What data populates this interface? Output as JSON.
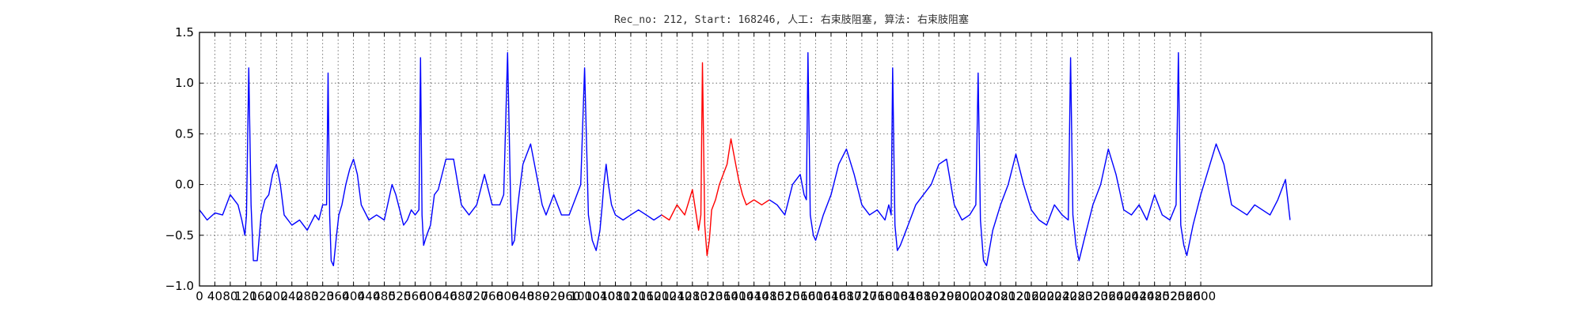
{
  "chart_data": {
    "type": "line",
    "title": "Rec_no: 212, Start: 168246, 人工: 右束肢阻塞, 算法: 右束肢阻塞",
    "xlabel": "",
    "ylabel": "",
    "xlim": [
      0,
      3200
    ],
    "ylim": [
      -1.0,
      1.5
    ],
    "grid": true,
    "y_ticks": [
      "1.5",
      "1.0",
      "0.5",
      "0.0",
      "−0.5",
      "−1.0"
    ],
    "y_tick_values": [
      1.5,
      1.0,
      0.5,
      0.0,
      -0.5,
      -1.0
    ],
    "x_ticks": [
      "0",
      "40",
      "80",
      "120",
      "160",
      "200",
      "240",
      "280",
      "320",
      "360",
      "400",
      "440",
      "480",
      "520",
      "560",
      "600",
      "640",
      "680",
      "720",
      "760",
      "800",
      "840",
      "880",
      "920",
      "960",
      "1000",
      "1040",
      "1080",
      "1120",
      "1160",
      "1200",
      "1240",
      "1280",
      "1320",
      "1360",
      "1400",
      "1440",
      "1480",
      "1520",
      "1560",
      "1600",
      "1640",
      "1680",
      "1720",
      "1760",
      "1800",
      "1840",
      "1880",
      "1920",
      "1960",
      "2000",
      "2040",
      "2080",
      "2120",
      "2160",
      "2200",
      "2240",
      "2280",
      "2320",
      "2360",
      "2400",
      "2440",
      "2480",
      "2520",
      "2560",
      "2600"
    ],
    "x_tick_values": [
      0,
      40,
      80,
      120,
      160,
      200,
      240,
      280,
      320,
      360,
      400,
      440,
      480,
      520,
      560,
      600,
      640,
      680,
      720,
      760,
      800,
      840,
      880,
      920,
      960,
      1000,
      1040,
      1080,
      1120,
      1160,
      1200,
      1240,
      1280,
      1320,
      1360,
      1400,
      1440,
      1480,
      1520,
      1560,
      1600,
      1640,
      1680,
      1720,
      1760,
      1800,
      1840,
      1880,
      1920,
      1960,
      2000,
      2040,
      2080,
      2120,
      2160,
      2200,
      2240,
      2280,
      2320,
      2360,
      2400,
      2440,
      2480,
      2520,
      2560,
      2600
    ],
    "series": [
      {
        "color": "#0000ff",
        "x": [
          0,
          20,
          40,
          60,
          80,
          100,
          110,
          118,
          122,
          128,
          134,
          140,
          150,
          160,
          170,
          180,
          190,
          200,
          210,
          220,
          240,
          260,
          280,
          300,
          310,
          320,
          330,
          334,
          338,
          342,
          348,
          356,
          362,
          370,
          380,
          390,
          400,
          410,
          420,
          440,
          460,
          480,
          500,
          510,
          520,
          530,
          540,
          550,
          560,
          570,
          574,
          578,
          582,
          590,
          600,
          610,
          620,
          640,
          660,
          680,
          700,
          720,
          740,
          760,
          780,
          790,
          800,
          808,
          812,
          818,
          824,
          830,
          840,
          860,
          880,
          890,
          900,
          920,
          940,
          960,
          970,
          990,
          1000,
          1010,
          1020,
          1030,
          1040,
          1046,
          1050,
          1056,
          1062,
          1070,
          1080,
          1100,
          1120,
          1140,
          1160,
          1180,
          1200
        ],
        "y": [
          -0.25,
          -0.35,
          -0.28,
          -0.3,
          -0.1,
          -0.2,
          -0.35,
          -0.5,
          -0.3,
          1.15,
          -0.2,
          -0.75,
          -0.75,
          -0.3,
          -0.15,
          -0.1,
          0.1,
          0.2,
          0.0,
          -0.3,
          -0.4,
          -0.35,
          -0.45,
          -0.3,
          -0.35,
          -0.2,
          -0.2,
          1.1,
          -0.3,
          -0.75,
          -0.8,
          -0.5,
          -0.3,
          -0.2,
          0.0,
          0.15,
          0.25,
          0.1,
          -0.2,
          -0.35,
          -0.3,
          -0.35,
          0.0,
          -0.1,
          -0.25,
          -0.4,
          -0.35,
          -0.25,
          -0.3,
          -0.25,
          1.25,
          -0.3,
          -0.6,
          -0.5,
          -0.4,
          -0.1,
          -0.05,
          0.25,
          0.25,
          -0.2,
          -0.3,
          -0.2,
          0.1,
          -0.2,
          -0.2,
          -0.1,
          1.3,
          -0.15,
          -0.6,
          -0.55,
          -0.3,
          -0.1,
          0.2,
          0.4,
          0.0,
          -0.2,
          -0.3,
          -0.1,
          -0.3,
          -0.3,
          -0.2,
          0.0,
          1.15,
          -0.3,
          -0.55,
          -0.65,
          -0.45,
          -0.2,
          0.0,
          0.2,
          0.0,
          -0.2,
          -0.3,
          -0.35,
          -0.3,
          -0.25,
          -0.3,
          -0.35,
          -0.3
        ]
      },
      {
        "color": "#ff0000",
        "x": [
          1200,
          1220,
          1240,
          1260,
          1280,
          1290,
          1296,
          1302,
          1306,
          1312,
          1318,
          1324,
          1330,
          1340,
          1350,
          1360,
          1370,
          1380,
          1390,
          1400,
          1410,
          1420,
          1440,
          1460,
          1480
        ],
        "y": [
          -0.3,
          -0.35,
          -0.2,
          -0.3,
          -0.05,
          -0.3,
          -0.45,
          -0.3,
          1.2,
          -0.4,
          -0.7,
          -0.55,
          -0.25,
          -0.15,
          0.0,
          0.1,
          0.2,
          0.45,
          0.25,
          0.05,
          -0.1,
          -0.2,
          -0.15,
          -0.2,
          -0.15
        ]
      },
      {
        "color": "#0000ff",
        "x": [
          1480,
          1500,
          1520,
          1540,
          1560,
          1570,
          1576,
          1580,
          1586,
          1594,
          1600,
          1620,
          1640,
          1660,
          1680,
          1700,
          1720,
          1740,
          1760,
          1780,
          1790,
          1796,
          1800,
          1806,
          1812,
          1820,
          1840,
          1860,
          1880,
          1900,
          1920,
          1940,
          1960,
          1980,
          2000,
          2016,
          2022,
          2028,
          2036,
          2044,
          2060,
          2080,
          2100,
          2120,
          2140,
          2160,
          2180,
          2200,
          2220,
          2240,
          2256,
          2262,
          2268,
          2276,
          2284,
          2300,
          2320,
          2340,
          2360,
          2380,
          2400,
          2420,
          2440,
          2460,
          2480,
          2500,
          2520,
          2536,
          2542,
          2548,
          2556,
          2564,
          2580,
          2600,
          2620,
          2640,
          2660,
          2680,
          2700,
          2720,
          2740,
          2760,
          2780,
          2800,
          2820,
          2826,
          2832
        ],
        "y": [
          -0.15,
          -0.2,
          -0.3,
          0.0,
          0.1,
          -0.1,
          -0.15,
          1.3,
          -0.3,
          -0.5,
          -0.55,
          -0.3,
          -0.1,
          0.2,
          0.35,
          0.1,
          -0.2,
          -0.3,
          -0.25,
          -0.35,
          -0.2,
          -0.3,
          1.15,
          -0.4,
          -0.65,
          -0.6,
          -0.4,
          -0.2,
          -0.1,
          0.0,
          0.2,
          0.25,
          -0.2,
          -0.35,
          -0.3,
          -0.2,
          1.1,
          -0.35,
          -0.75,
          -0.8,
          -0.45,
          -0.2,
          0.0,
          0.3,
          0.0,
          -0.25,
          -0.35,
          -0.4,
          -0.2,
          -0.3,
          -0.35,
          1.25,
          -0.3,
          -0.6,
          -0.75,
          -0.5,
          -0.2,
          0.0,
          0.35,
          0.1,
          -0.25,
          -0.3,
          -0.2,
          -0.35,
          -0.1,
          -0.3,
          -0.35,
          -0.2,
          1.3,
          -0.4,
          -0.6,
          -0.7,
          -0.4,
          -0.1,
          0.15,
          0.4,
          0.2,
          -0.2,
          -0.25,
          -0.3,
          -0.2,
          -0.25,
          -0.3,
          -0.15,
          0.05,
          -0.15,
          -0.35
        ]
      }
    ]
  }
}
